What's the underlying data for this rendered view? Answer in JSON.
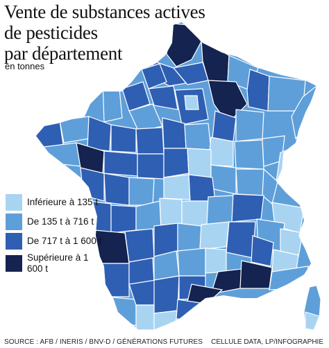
{
  "title": [
    "Vente de substances actives",
    "de pesticides",
    "par département"
  ],
  "subtitle": "en tonnes",
  "colors": {
    "class1": "#a8d4f2",
    "class2": "#5f9fd9",
    "class3": "#2f5fb3",
    "class4": "#14234f",
    "border": "#ffffff"
  },
  "legend": [
    {
      "label": "Inférieure à 135 t",
      "color_key": "class1"
    },
    {
      "label": "De 135 t à 716 t",
      "color_key": "class2"
    },
    {
      "label": "De 717 t à 1 600 t",
      "color_key": "class3"
    },
    {
      "label": "Supérieure à 1 600 t",
      "color_key": "class4"
    }
  ],
  "source": "SOURCE : AFB / INERIS / BNV-D / GÉNÉRATIONS FUTURES",
  "credit": "CELLULE DATA, LP/INFOGRAPHIE"
}
